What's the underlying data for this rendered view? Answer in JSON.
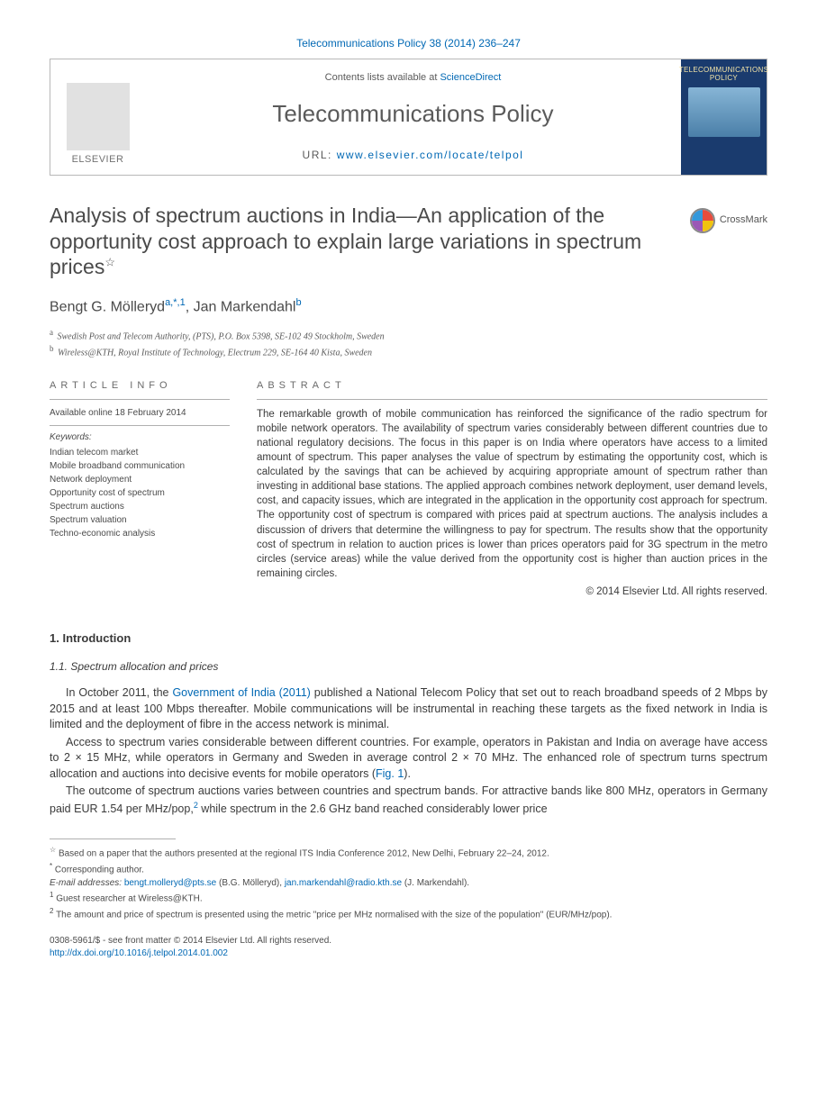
{
  "citation": "Telecommunications Policy 38 (2014) 236–247",
  "header": {
    "publisher": "ELSEVIER",
    "contents_prefix": "Contents lists available at ",
    "contents_link": "ScienceDirect",
    "journal": "Telecommunications Policy",
    "url_label": "URL: ",
    "url": "www.elsevier.com/locate/telpol",
    "cover_title": "TELECOMMUNICATIONS POLICY"
  },
  "title": "Analysis of spectrum auctions in India—An application of the opportunity cost approach to explain large variations in spectrum prices",
  "title_note_symbol": "☆",
  "crossmark": "CrossMark",
  "authors": {
    "a1_name": "Bengt G. Mölleryd",
    "a1_sup": "a,*,1",
    "a2_name": "Jan Markendahl",
    "a2_sup": "b"
  },
  "affiliations": {
    "a": "Swedish Post and Telecom Authority, (PTS), P.O. Box 5398, SE-102 49 Stockholm, Sweden",
    "b": "Wireless@KTH, Royal Institute of Technology, Electrum 229, SE-164 40 Kista, Sweden"
  },
  "info": {
    "label": "ARTICLE INFO",
    "online": "Available online 18 February 2014",
    "keywords_label": "Keywords:",
    "keywords": [
      "Indian telecom market",
      "Mobile broadband communication",
      "Network deployment",
      "Opportunity cost of spectrum",
      "Spectrum auctions",
      "Spectrum valuation",
      "Techno-economic analysis"
    ]
  },
  "abstract": {
    "label": "ABSTRACT",
    "text": "The remarkable growth of mobile communication has reinforced the significance of the radio spectrum for mobile network operators. The availability of spectrum varies considerably between different countries due to national regulatory decisions. The focus in this paper is on India where operators have access to a limited amount of spectrum. This paper analyses the value of spectrum by estimating the opportunity cost, which is calculated by the savings that can be achieved by acquiring appropriate amount of spectrum rather than investing in additional base stations. The applied approach combines network deployment, user demand levels, cost, and capacity issues, which are integrated in the application in the opportunity cost approach for spectrum. The opportunity cost of spectrum is compared with prices paid at spectrum auctions. The analysis includes a discussion of drivers that determine the willingness to pay for spectrum. The results show that the opportunity cost of spectrum in relation to auction prices is lower than prices operators paid for 3G spectrum in the metro circles (service areas) while the value derived from the opportunity cost is higher than auction prices in the remaining circles.",
    "copyright": "© 2014 Elsevier Ltd. All rights reserved."
  },
  "body": {
    "s1": "1.  Introduction",
    "s1_1": "1.1.  Spectrum allocation and prices",
    "p1_a": "In October 2011, the ",
    "p1_link": "Government of India (2011)",
    "p1_b": " published a National Telecom Policy that set out to reach broadband speeds of 2 Mbps by 2015 and at least 100 Mbps thereafter. Mobile communications will be instrumental in reaching these targets as the fixed network in India is limited and the deployment of fibre in the access network is minimal.",
    "p2_a": "Access to spectrum varies considerable between different countries. For example, operators in Pakistan and India on average have access to 2 × 15 MHz, while operators in Germany and Sweden in average control 2 × 70 MHz. The enhanced role of spectrum turns spectrum allocation and auctions into decisive events for mobile operators (",
    "p2_link": "Fig. 1",
    "p2_b": ").",
    "p3_a": "The outcome of spectrum auctions varies between countries and spectrum bands. For attractive bands like 800 MHz, operators in Germany paid EUR 1.54 per MHz/pop,",
    "p3_sup": "2",
    "p3_b": " while spectrum in the 2.6 GHz band reached considerably lower price"
  },
  "footnotes": {
    "star": "Based on a paper that the authors presented at the regional ITS India Conference 2012, New Delhi, February 22–24, 2012.",
    "corr_label": "Corresponding author.",
    "email_label": "E-mail addresses: ",
    "email1": "bengt.molleryd@pts.se",
    "email1_name": " (B.G. Mölleryd), ",
    "email2": "jan.markendahl@radio.kth.se",
    "email2_name": " (J. Markendahl).",
    "n1": "Guest researcher at Wireless@KTH.",
    "n2": "The amount and price of spectrum is presented using the metric \"price per MHz normalised with the size of the population\" (EUR/MHz/pop)."
  },
  "bottom": {
    "issn": "0308-5961/$ - see front matter © 2014 Elsevier Ltd. All rights reserved.",
    "doi": "http://dx.doi.org/10.1016/j.telpol.2014.01.002"
  },
  "colors": {
    "link": "#0068b4",
    "text": "#3a3a3a",
    "muted": "#5a5a5a",
    "border": "#b0b0b0",
    "cover_bg": "#1a3b6e",
    "cover_text": "#f5e6a8"
  }
}
